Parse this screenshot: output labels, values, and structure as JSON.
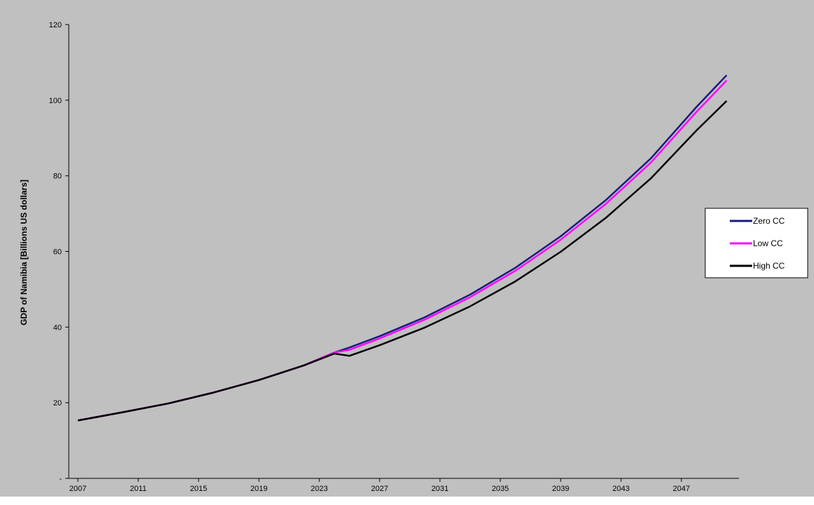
{
  "chart_data": {
    "type": "line",
    "title": "",
    "xlabel": "",
    "ylabel": "GDP of Namibia [Billions US dollars]",
    "x_ticks": [
      "2007",
      "2011",
      "2015",
      "2019",
      "2023",
      "2027",
      "2031",
      "2035",
      "2039",
      "2043",
      "2047"
    ],
    "y_ticks": [
      "-",
      "20",
      "40",
      "60",
      "80",
      "100",
      "120"
    ],
    "xlim": [
      2007,
      2050
    ],
    "ylim": [
      0,
      120
    ],
    "legend_position": "right",
    "grid": false,
    "colors": {
      "plot_background": "#c0c0c0",
      "page_background": "#ffffff",
      "zero_cc": "#1a1a80",
      "low_cc": "#ff00ff",
      "high_cc": "#000000"
    },
    "x": [
      2007,
      2010,
      2013,
      2016,
      2019,
      2022,
      2024,
      2025,
      2027,
      2030,
      2033,
      2036,
      2039,
      2042,
      2045,
      2048,
      2050
    ],
    "series": [
      {
        "name": "Zero CC",
        "color": "#1a1a80",
        "values": [
          15.3,
          17.5,
          19.8,
          22.7,
          26.0,
          29.9,
          33.3,
          34.6,
          37.6,
          42.6,
          48.6,
          55.7,
          64.0,
          73.6,
          84.7,
          98.2,
          106.6
        ]
      },
      {
        "name": "Low CC",
        "color": "#ff00ff",
        "values": [
          15.3,
          17.5,
          19.8,
          22.7,
          26.0,
          29.9,
          33.3,
          34.0,
          37.0,
          42.0,
          47.9,
          54.9,
          63.1,
          72.6,
          83.6,
          96.9,
          105.2
        ]
      },
      {
        "name": "High CC",
        "color": "#000000",
        "values": [
          15.3,
          17.5,
          19.8,
          22.7,
          26.0,
          29.9,
          33.0,
          32.4,
          35.2,
          39.9,
          45.5,
          52.1,
          59.9,
          68.9,
          79.4,
          92.0,
          99.8
        ]
      }
    ]
  }
}
